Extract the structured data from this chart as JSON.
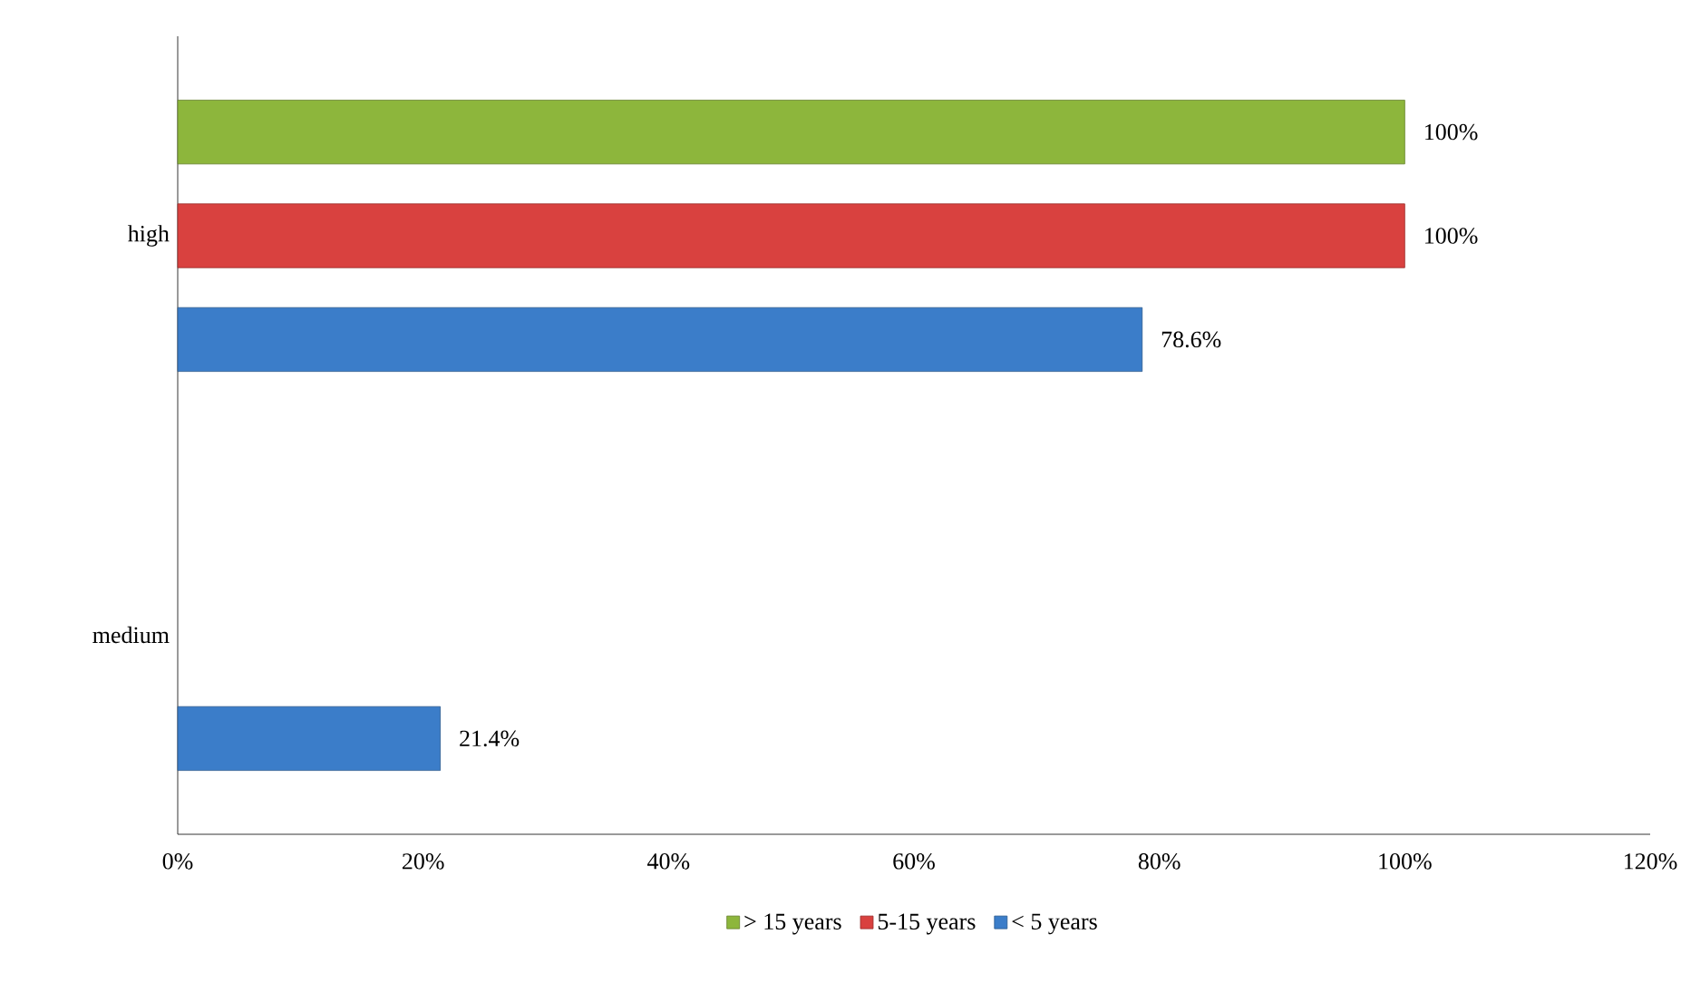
{
  "chart_data": {
    "type": "bar",
    "orientation": "horizontal",
    "categories": [
      "high",
      "medium"
    ],
    "series": [
      {
        "name": "> 15 years",
        "color": "#8db63c",
        "values": [
          100,
          null
        ],
        "value_labels": [
          "100%",
          null
        ]
      },
      {
        "name": "5-15 years",
        "color": "#d9413f",
        "values": [
          100,
          null
        ],
        "value_labels": [
          "100%",
          null
        ]
      },
      {
        "name": "< 5 years",
        "color": "#3b7dc9",
        "values": [
          78.6,
          21.4
        ],
        "value_labels": [
          "78.6%",
          "21.4%"
        ]
      }
    ],
    "xlim": [
      0,
      120
    ],
    "xticks": [
      {
        "value": 0,
        "label": "0%"
      },
      {
        "value": 20,
        "label": "20%"
      },
      {
        "value": 40,
        "label": "40%"
      },
      {
        "value": 60,
        "label": "60%"
      },
      {
        "value": 80,
        "label": "80%"
      },
      {
        "value": 100,
        "label": "100%"
      },
      {
        "value": 120,
        "label": "120%"
      }
    ],
    "grid": false,
    "legend": "bottom"
  }
}
